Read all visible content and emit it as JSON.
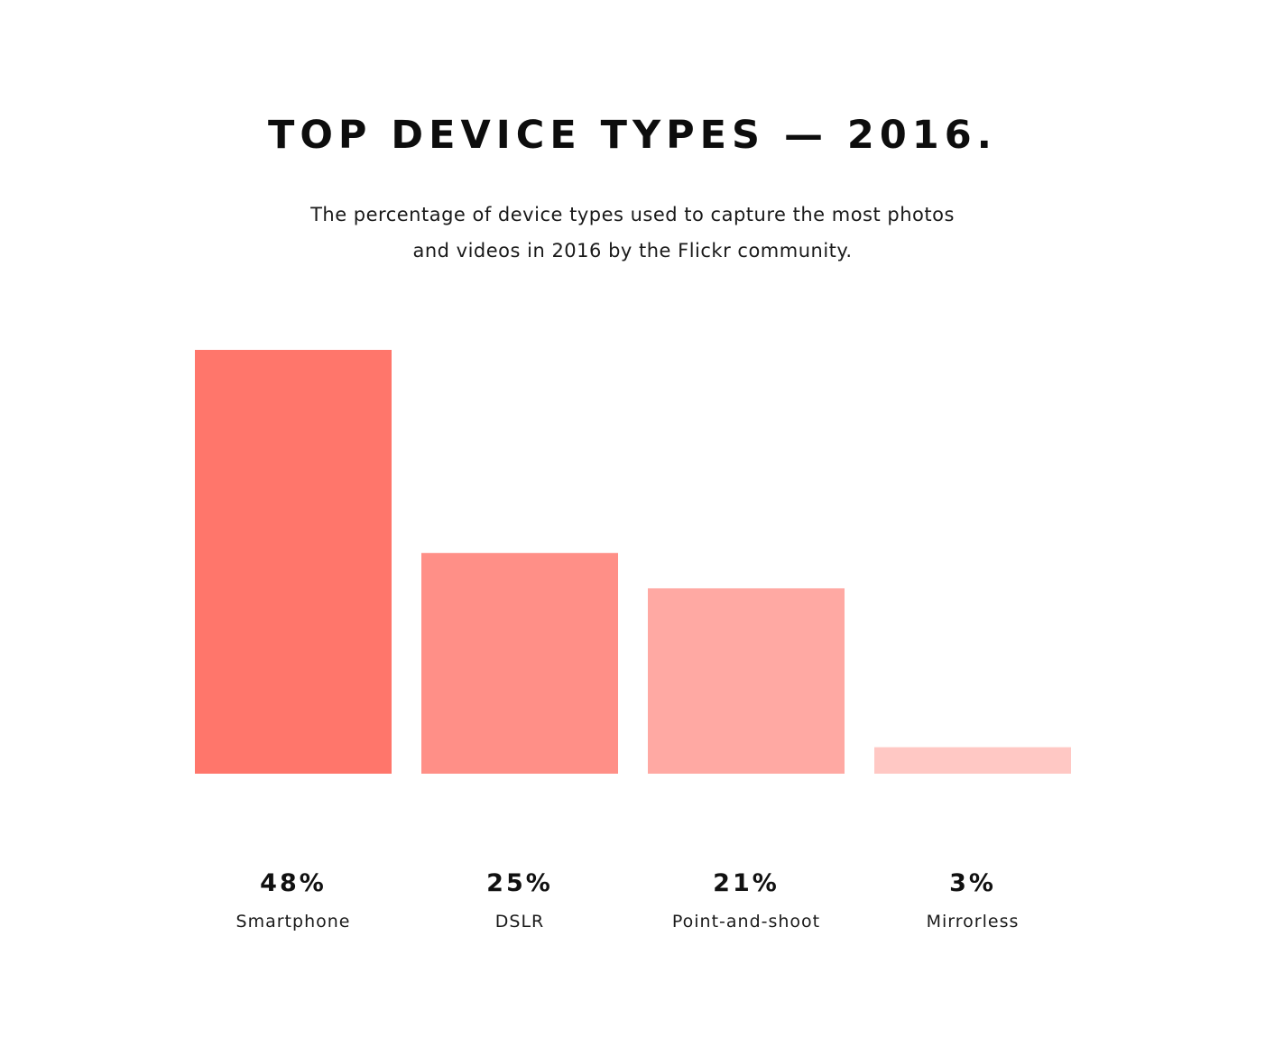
{
  "title": "TOP DEVICE TYPES — 2016.",
  "subtitle": "The percentage of device types used to capture the most photos and videos in 2016 by the Flickr community.",
  "chart_data": {
    "type": "bar",
    "categories": [
      "Smartphone",
      "DSLR",
      "Point-and-shoot",
      "Mirrorless"
    ],
    "values": [
      48,
      25,
      21,
      3
    ],
    "value_labels": [
      "48%",
      "25%",
      "21%",
      "3%"
    ],
    "colors": [
      "#ff766b",
      "#ff8f87",
      "#ffa9a3",
      "#ffc8c4"
    ],
    "xlabel": "",
    "ylabel": "",
    "ylim": [
      0,
      48
    ],
    "grid": false,
    "legend": "none"
  }
}
